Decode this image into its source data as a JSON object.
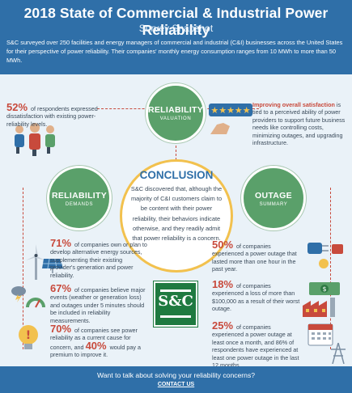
{
  "header": {
    "title": "2018 State of Commercial & Industrial Power Reliability",
    "subtitle": "Survey Snapshot",
    "intro": "S&C surveyed over 250 facilities and energy managers of commercial and industrial (C&I) businesses across the United States for their perspective of power reliability.  Their companies' monthly energy consumption ranges from 10 MWh to more than 50 MWh."
  },
  "circles": {
    "valuation": {
      "title": "RELIABILITY",
      "sub": "VALUATION"
    },
    "demands": {
      "title": "RELIABILITY",
      "sub": "DEMANDS"
    },
    "outage": {
      "title": "OUTAGE",
      "sub": "SUMMARY"
    }
  },
  "valuation": {
    "left_pct": "52%",
    "left_text": "of respondents expressed dissatisfaction with existing power-reliability levels.",
    "right_highlight": "Improving overall satisfaction",
    "right_text": "is tied to a perceived ability of power providers to support future business needs like controlling costs, minimizing outages, and upgrading infrastructure."
  },
  "conclusion": {
    "heading": "CONCLUSION",
    "text": "S&C discovered that, although the majority of C&I customers claim to be content with their power reliability, their behaviors indicate otherwise, and they readily admit that power reliability is a concern."
  },
  "logo": {
    "text": "S&C"
  },
  "demands": [
    {
      "pct": "71%",
      "text": "of companies own or plan to develop alternative energy sources, supplementing their existing provider's generation and power reliability."
    },
    {
      "pct": "67%",
      "text": "of companies believe major events (weather or generation loss) and outages under 5 minutes should be included in reliability measurements."
    },
    {
      "pct": "70%",
      "text": "of companies see power reliability as a current cause for concern, and",
      "pct2": "40%",
      "text2": "would pay a premium to improve it."
    }
  ],
  "outage": [
    {
      "pct": "50%",
      "text": "of companies experienced a power outage that lasted more than one hour in the past year."
    },
    {
      "pct": "18%",
      "text": "of companies experienced a loss of more than $100,000 as a result of their worst outage."
    },
    {
      "pct": "25%",
      "text": "of companies experienced a power outage at least once a month, and 86% of respondents have experienced at least one power outage in the last 12 months."
    }
  ],
  "footer": {
    "question": "Want to talk about solving your reliability concerns?",
    "cta": "CONTACT US"
  },
  "colors": {
    "header": "#2f6fa8",
    "accent": "#c84a3c",
    "circle": "#5aa06a",
    "logo": "#1f7a40",
    "ring": "#f2c14e"
  },
  "icons": [
    "people-icon",
    "stars-icon",
    "wind-turbine-icon",
    "solar-panel-icon",
    "storm-cloud-icon",
    "gauge-icon",
    "warning-bulb-icon",
    "power-plug-icon",
    "money-icon",
    "factory-icon",
    "calendar-icon",
    "transmission-tower-icon"
  ]
}
